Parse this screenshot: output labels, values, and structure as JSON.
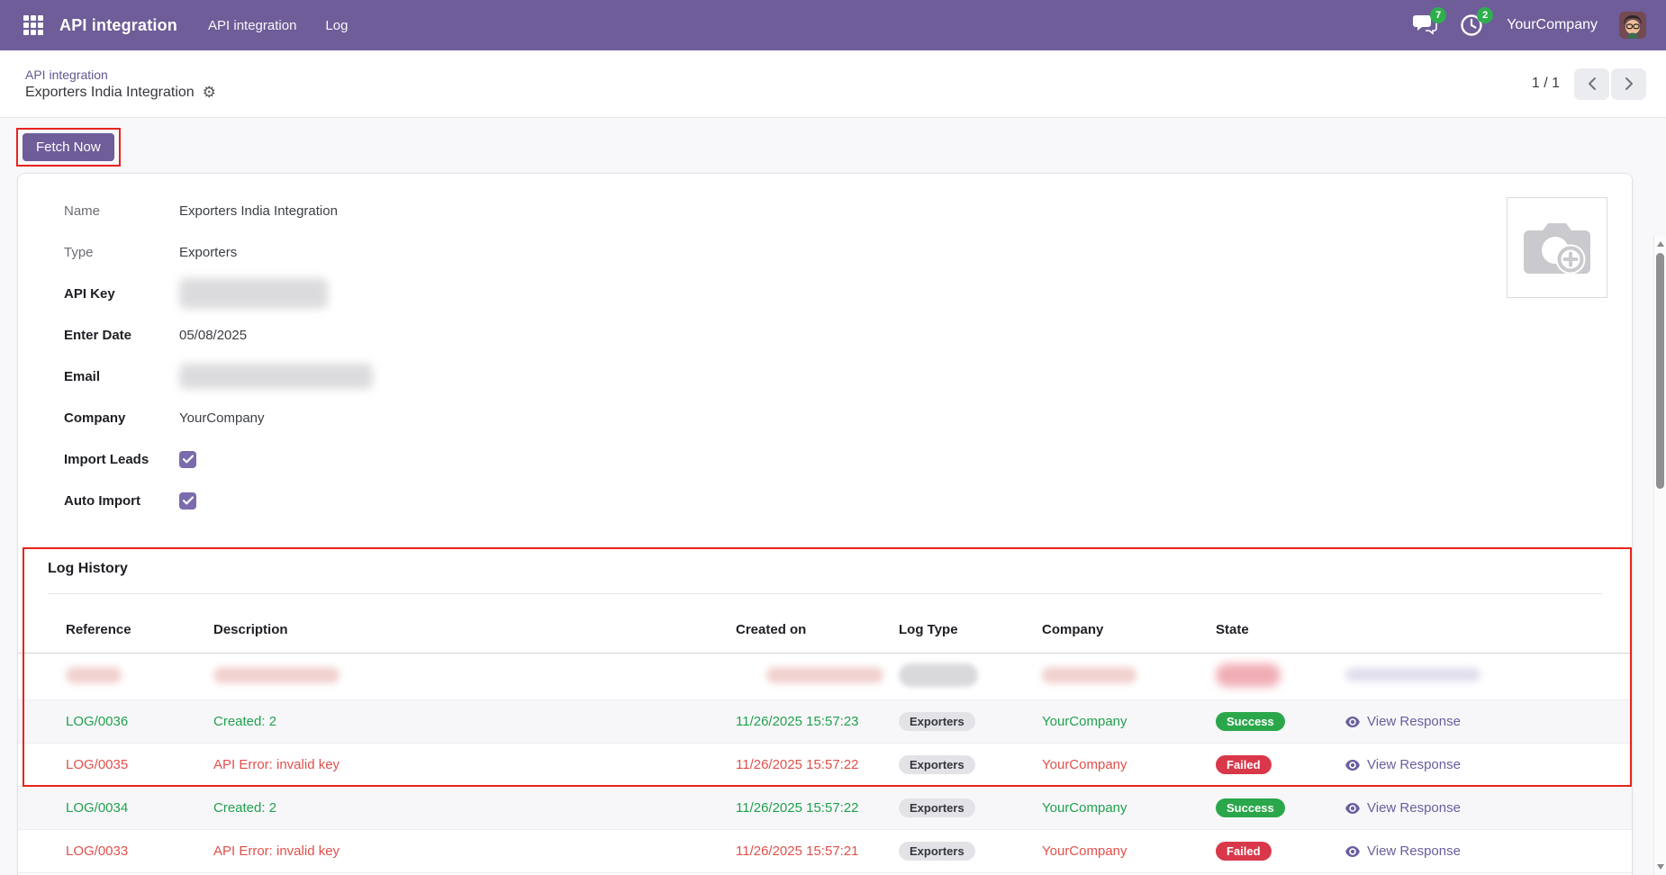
{
  "topbar": {
    "brand": "API integration",
    "menus": [
      {
        "label": "API integration"
      },
      {
        "label": "Log"
      }
    ],
    "messages_badge": "7",
    "activities_badge": "2",
    "company": "YourCompany"
  },
  "breadcrumb": {
    "parent": "API integration",
    "title": "Exporters India Integration",
    "pager": "1 / 1"
  },
  "actions": {
    "fetch_now": "Fetch Now"
  },
  "form": {
    "fields": [
      {
        "label": "Name",
        "value": "Exporters India Integration",
        "bold": false
      },
      {
        "label": "Type",
        "value": "Exporters",
        "bold": false
      },
      {
        "label": "API Key",
        "value": "",
        "redacted": true,
        "bold": true
      },
      {
        "label": "Enter Date",
        "value": "05/08/2025",
        "bold": true
      },
      {
        "label": "Email",
        "value": "",
        "redacted": true,
        "bold": true
      },
      {
        "label": "Company",
        "value": "YourCompany",
        "bold": true
      },
      {
        "label": "Import Leads",
        "checkbox": true,
        "checked": true,
        "bold": true
      },
      {
        "label": "Auto Import",
        "checkbox": true,
        "checked": true,
        "bold": true
      }
    ]
  },
  "log_history": {
    "title": "Log History",
    "columns": [
      "Reference",
      "Description",
      "Created on",
      "Log Type",
      "Company",
      "State",
      ""
    ],
    "rows": [
      {
        "redacted": true
      },
      {
        "reference": "LOG/0036",
        "description": "Created: 2",
        "created_on": "11/26/2025 15:57:23",
        "log_type": "Exporters",
        "company": "YourCompany",
        "state": "Success",
        "action": "View Response",
        "tone": "success"
      },
      {
        "reference": "LOG/0035",
        "description": "API Error: invalid key",
        "created_on": "11/26/2025 15:57:22",
        "log_type": "Exporters",
        "company": "YourCompany",
        "state": "Failed",
        "action": "View Response",
        "tone": "danger"
      },
      {
        "reference": "LOG/0034",
        "description": "Created: 2",
        "created_on": "11/26/2025 15:57:22",
        "log_type": "Exporters",
        "company": "YourCompany",
        "state": "Success",
        "action": "View Response",
        "tone": "success"
      },
      {
        "reference": "LOG/0033",
        "description": "API Error: invalid key",
        "created_on": "11/26/2025 15:57:21",
        "log_type": "Exporters",
        "company": "YourCompany",
        "state": "Failed",
        "action": "View Response",
        "tone": "danger"
      }
    ]
  },
  "icons": {
    "apps": "grid-3x3",
    "messages": "chat-bubbles",
    "activities": "clock",
    "settings": "gear",
    "pager_prev": "chevron-left",
    "pager_next": "chevron-right",
    "view_response": "eye",
    "image_upload": "camera-plus"
  },
  "colors": {
    "navbar": "#6e5d98",
    "accent": "#6e5d98",
    "annotation_red": "#e8231d",
    "success_text": "#21a04e",
    "danger_text": "#e0504b",
    "success_badge": "#2aa74a",
    "danger_badge": "#d9384a",
    "notification_badge": "#2fae4e",
    "breadcrumb_link": "#60588f",
    "view_link": "#6a5d9e"
  }
}
